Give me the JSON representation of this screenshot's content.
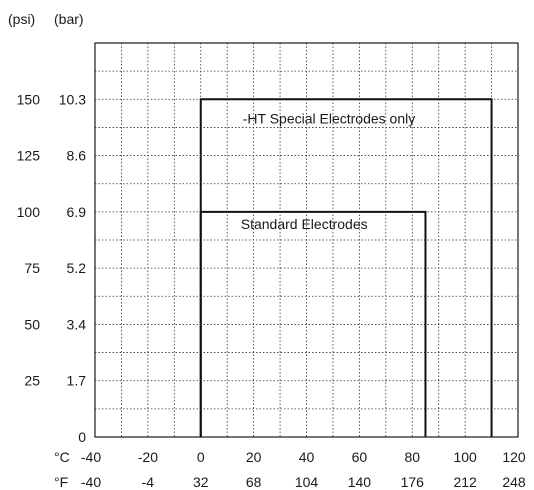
{
  "chart_data": {
    "type": "area",
    "title": "",
    "grid": true,
    "x_axis": {
      "celsius_label": "°C",
      "fahrenheit_label": "°F",
      "range_c": [
        -40,
        120
      ],
      "ticks": [
        {
          "c": "-40",
          "f": "-40"
        },
        {
          "c": "-20",
          "f": "-4"
        },
        {
          "c": "0",
          "f": "32"
        },
        {
          "c": "20",
          "f": "68"
        },
        {
          "c": "40",
          "f": "104"
        },
        {
          "c": "60",
          "f": "140"
        },
        {
          "c": "80",
          "f": "176"
        },
        {
          "c": "100",
          "f": "212"
        },
        {
          "c": "120",
          "f": "248"
        }
      ],
      "ticks_c": [
        -40,
        -20,
        0,
        20,
        40,
        60,
        80,
        100,
        120
      ]
    },
    "y_axis": {
      "psi_label": "(psi)",
      "bar_label": "(bar)",
      "range_psi": [
        0,
        175
      ],
      "ticks": [
        {
          "psi": "",
          "bar": "0"
        },
        {
          "psi": "25",
          "bar": "1.7"
        },
        {
          "psi": "50",
          "bar": "3.4"
        },
        {
          "psi": "75",
          "bar": "5.2"
        },
        {
          "psi": "100",
          "bar": "6.9"
        },
        {
          "psi": "125",
          "bar": "8.6"
        },
        {
          "psi": "150",
          "bar": "10.3"
        }
      ],
      "ticks_psi": [
        0,
        25,
        50,
        75,
        100,
        125,
        150
      ]
    },
    "regions": [
      {
        "name": "Standard Electrodes",
        "temp_c": [
          0,
          85
        ],
        "pressure_psi": [
          0,
          100
        ]
      },
      {
        "name": "-HT Special Electrodes only",
        "temp_c": [
          0,
          110
        ],
        "pressure_psi": [
          0,
          150
        ]
      }
    ]
  }
}
